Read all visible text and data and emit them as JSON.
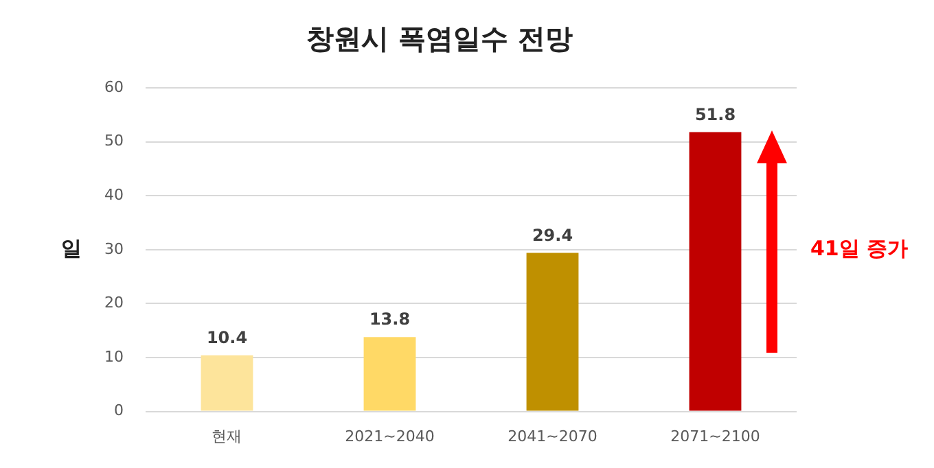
{
  "chart_data": {
    "type": "bar",
    "title": "창원시 폭염일수 전망",
    "ylabel": "일",
    "categories": [
      "현재",
      "2021~2040",
      "2041~2070",
      "2071~2100"
    ],
    "values": [
      10.4,
      13.8,
      29.4,
      51.8
    ],
    "colors": [
      "#fde49b",
      "#ffd966",
      "#bf9000",
      "#c00000"
    ],
    "ylim": [
      0,
      60
    ],
    "yticks": [
      0,
      10,
      20,
      30,
      40,
      50,
      60
    ],
    "grid": "y",
    "legend": false,
    "data_labels": true,
    "annotations": [
      "41일 증가"
    ]
  }
}
